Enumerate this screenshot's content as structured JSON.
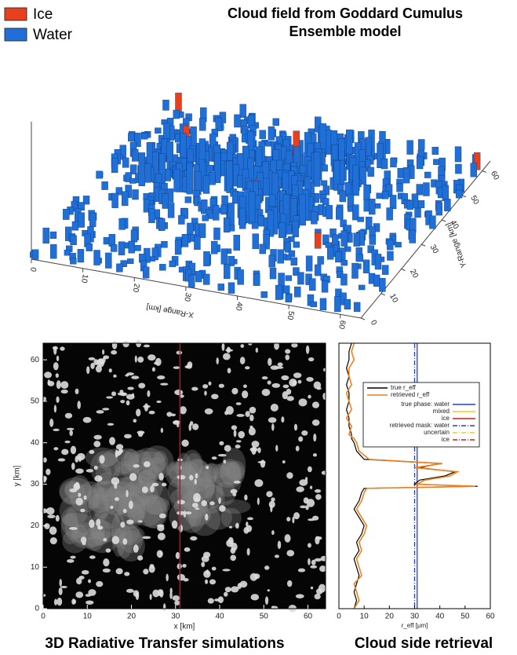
{
  "chart_data": [
    {
      "type": "voxel3d",
      "title": "Cloud field from Goddard Cumulus Ensemble model",
      "series": [
        {
          "name": "Ice",
          "color": "#e8401c"
        },
        {
          "name": "Water",
          "color": "#1f6fd6"
        }
      ],
      "xlabel": "X-Range [km]",
      "ylabel": "Y-Range [km]",
      "xlim": [
        0,
        64
      ],
      "ylim": [
        0,
        64
      ],
      "xticks": [
        0,
        10,
        20,
        30,
        40,
        50,
        60
      ],
      "yticks": [
        0,
        10,
        20,
        30,
        40,
        50,
        60
      ]
    },
    {
      "type": "image",
      "title": "3D Radiative Transfer simulations",
      "xlabel": "x [km]",
      "ylabel": "y [km]",
      "xlim": [
        0,
        64
      ],
      "ylim": [
        0,
        64
      ],
      "xticks": [
        0,
        10,
        20,
        30,
        40,
        50,
        60
      ],
      "yticks": [
        0,
        10,
        20,
        30,
        40,
        50,
        60
      ],
      "marker_x": 31,
      "marker_color": "#c0141c"
    },
    {
      "type": "line",
      "title": "Cloud side retrieval",
      "xlabel": "r_eff [μm]",
      "xlim": [
        0,
        60
      ],
      "xticks": [
        0,
        10,
        20,
        30,
        40,
        50,
        60
      ],
      "ylim": [
        0,
        64
      ],
      "y": [
        0,
        2,
        4,
        6,
        8,
        10,
        12,
        14,
        16,
        18,
        20,
        22,
        24,
        26,
        28,
        29,
        29.5,
        30,
        31,
        32,
        33,
        34,
        35,
        36,
        38,
        40,
        41,
        42,
        44,
        46,
        48,
        50,
        52,
        54,
        56,
        58,
        60,
        62,
        64
      ],
      "series": [
        {
          "name": "true r_eff",
          "color": "#000000",
          "values": [
            6,
            7,
            6,
            7,
            8,
            7,
            6,
            8,
            7,
            9,
            10,
            8,
            6,
            8,
            9,
            10,
            55,
            30,
            32,
            42,
            46,
            32,
            40,
            10,
            7,
            6,
            5,
            5,
            4,
            4,
            3,
            4,
            4,
            3,
            4,
            3,
            4,
            4,
            5
          ]
        },
        {
          "name": "retrieved r_eff",
          "color": "#f07f1a",
          "values": [
            6,
            8,
            7,
            6,
            9,
            8,
            7,
            9,
            8,
            10,
            11,
            9,
            7,
            9,
            10,
            11,
            54,
            31,
            34,
            44,
            47,
            30,
            41,
            12,
            8,
            7,
            6,
            4,
            5,
            3,
            5,
            4,
            3,
            5,
            4,
            4,
            6,
            5,
            6
          ]
        }
      ],
      "phase_lines": [
        {
          "name": "true phase: water",
          "color": "#1f3fd0",
          "dash": "none",
          "value": 31
        },
        {
          "name": "mixed",
          "color": "#e6d21a",
          "dash": "none"
        },
        {
          "name": "ice",
          "color": "#d01a1a",
          "dash": "none"
        },
        {
          "name": "retrieved mask: water",
          "color": "#1f3fd0",
          "dash": "6 2 1 2",
          "value": 30
        },
        {
          "name": "uncertain",
          "color": "#e6d21a",
          "dash": "6 2 1 2"
        },
        {
          "name": "ice",
          "color": "#d01a1a",
          "dash": "6 2 1 2"
        }
      ]
    }
  ]
}
